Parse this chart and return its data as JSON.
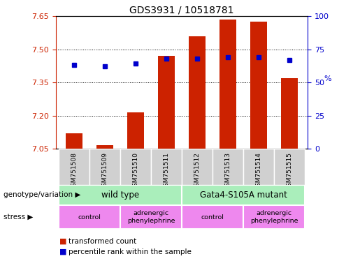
{
  "title": "GDS3931 / 10518781",
  "samples": [
    "GSM751508",
    "GSM751509",
    "GSM751510",
    "GSM751511",
    "GSM751512",
    "GSM751513",
    "GSM751514",
    "GSM751515"
  ],
  "bar_values": [
    7.12,
    7.065,
    7.215,
    7.47,
    7.56,
    7.635,
    7.625,
    7.37
  ],
  "bar_base": 7.05,
  "blue_values": [
    63,
    62,
    64,
    68,
    68,
    69,
    69,
    67
  ],
  "ylim_left": [
    7.05,
    7.65
  ],
  "ylim_right": [
    0,
    100
  ],
  "yticks_left": [
    7.05,
    7.2,
    7.35,
    7.5,
    7.65
  ],
  "yticks_right": [
    0,
    25,
    50,
    75,
    100
  ],
  "hgrid_ticks": [
    7.2,
    7.35,
    7.5
  ],
  "bar_color": "#cc2200",
  "blue_color": "#0000cc",
  "genotype_color": "#aaeebb",
  "stress_color": "#ee88ee",
  "xtick_bg_color": "#d0d0d0",
  "tick_color_left": "#cc2200",
  "tick_color_right": "#0000cc",
  "title_fontsize": 10,
  "bar_width": 0.55,
  "blue_marker_size": 5,
  "stress_groups": [
    [
      0,
      1,
      "control"
    ],
    [
      2,
      3,
      "adrenergic\nphenylephrine"
    ],
    [
      4,
      5,
      "control"
    ],
    [
      6,
      7,
      "adrenergic\nphenylephrine"
    ]
  ],
  "genotype_groups": [
    [
      0,
      3,
      "wild type"
    ],
    [
      4,
      7,
      "Gata4-S105A mutant"
    ]
  ],
  "legend": [
    {
      "color": "#cc2200",
      "label": "transformed count"
    },
    {
      "color": "#0000cc",
      "label": "percentile rank within the sample"
    }
  ]
}
